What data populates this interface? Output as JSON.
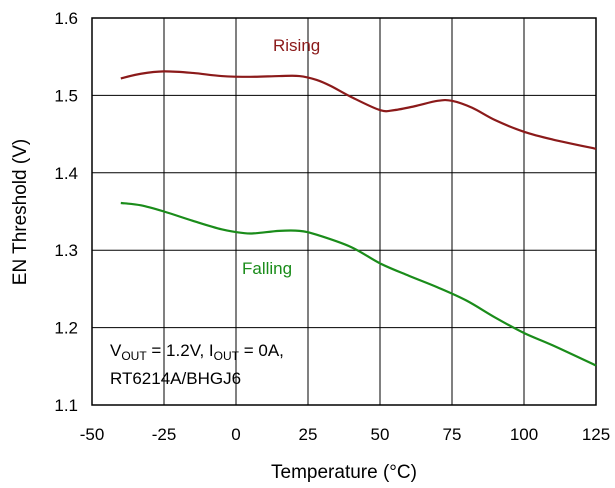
{
  "chart_data": {
    "type": "line",
    "title": "",
    "xlabel": "Temperature (°C)",
    "ylabel": "EN Threshold (V)",
    "xlim": [
      -50,
      125
    ],
    "ylim": [
      1.1,
      1.6
    ],
    "xticks": [
      -50,
      -25,
      0,
      25,
      50,
      75,
      100,
      125
    ],
    "yticks": [
      1.1,
      1.2,
      1.3,
      1.4,
      1.5,
      1.6
    ],
    "xtick_labels": [
      "-50",
      "-25",
      "0",
      "25",
      "50",
      "75",
      "100",
      "125"
    ],
    "ytick_labels": [
      "1.1",
      "1.2",
      "1.3",
      "1.4",
      "1.5",
      "1.6"
    ],
    "grid": true,
    "series": [
      {
        "name": "Rising",
        "color": "#8b1a1a",
        "x": [
          -40,
          -33,
          -25,
          -15,
          -5,
          5,
          15,
          22,
          28,
          33,
          40,
          50,
          55,
          62,
          70,
          75,
          82,
          90,
          100,
          110,
          125
        ],
        "y": [
          1.522,
          1.528,
          1.531,
          1.529,
          1.525,
          1.524,
          1.525,
          1.525,
          1.52,
          1.512,
          1.498,
          1.481,
          1.481,
          1.486,
          1.493,
          1.493,
          1.484,
          1.468,
          1.453,
          1.443,
          1.431
        ]
      },
      {
        "name": "Falling",
        "color": "#1a8c1a",
        "x": [
          -40,
          -33,
          -25,
          -15,
          -5,
          3,
          7,
          15,
          22,
          28,
          40,
          50,
          60,
          70,
          80,
          90,
          100,
          110,
          125
        ],
        "y": [
          1.361,
          1.358,
          1.35,
          1.338,
          1.327,
          1.322,
          1.322,
          1.325,
          1.325,
          1.32,
          1.304,
          1.283,
          1.267,
          1.252,
          1.235,
          1.213,
          1.193,
          1.177,
          1.151
        ]
      }
    ],
    "annotation": {
      "line1": {
        "v": "V",
        "v_sub": "OUT",
        "v_val": " = 1.2V, I",
        "i_sub": "OUT",
        "i_val": " = 0A,"
      },
      "line2": "RT6214A/BHGJ6"
    }
  }
}
